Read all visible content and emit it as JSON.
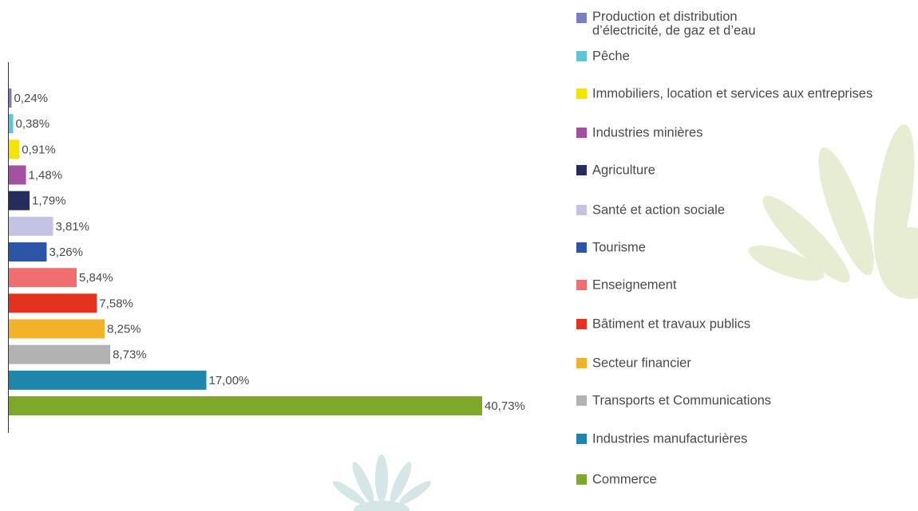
{
  "chart_data": {
    "type": "bar",
    "orientation": "horizontal",
    "categories": [
      "Production et distribution\nd’électricité, de gaz et d’eau",
      "Pêche",
      "Immobiliers, location et services aux entreprises",
      "Industries minières",
      "Agriculture",
      "Santé et action sociale",
      "Tourisme",
      "Enseignement",
      "Bâtiment et travaux publics",
      "Secteur financier",
      "Transports et Communications",
      "Industries manufacturières",
      "Commerce"
    ],
    "values": [
      0.24,
      0.38,
      0.91,
      1.48,
      1.79,
      3.81,
      3.26,
      5.84,
      7.58,
      8.25,
      8.73,
      17.0,
      40.73
    ],
    "value_labels": [
      "0,24%",
      "0,38%",
      "0,91%",
      "1,48%",
      "1,79%",
      "3,81%",
      "3,26%",
      "5,84%",
      "7,58%",
      "8,25%",
      "8,73%",
      "17,00%",
      "40,73%"
    ],
    "colors": [
      "#7b7fc0",
      "#5fc4d4",
      "#f5e400",
      "#a2509f",
      "#262c5e",
      "#c5c3e3",
      "#2a56a5",
      "#ef6e70",
      "#e3331f",
      "#f2b22a",
      "#b2b2b2",
      "#1e86ac",
      "#7da82a"
    ],
    "legend": "right"
  }
}
